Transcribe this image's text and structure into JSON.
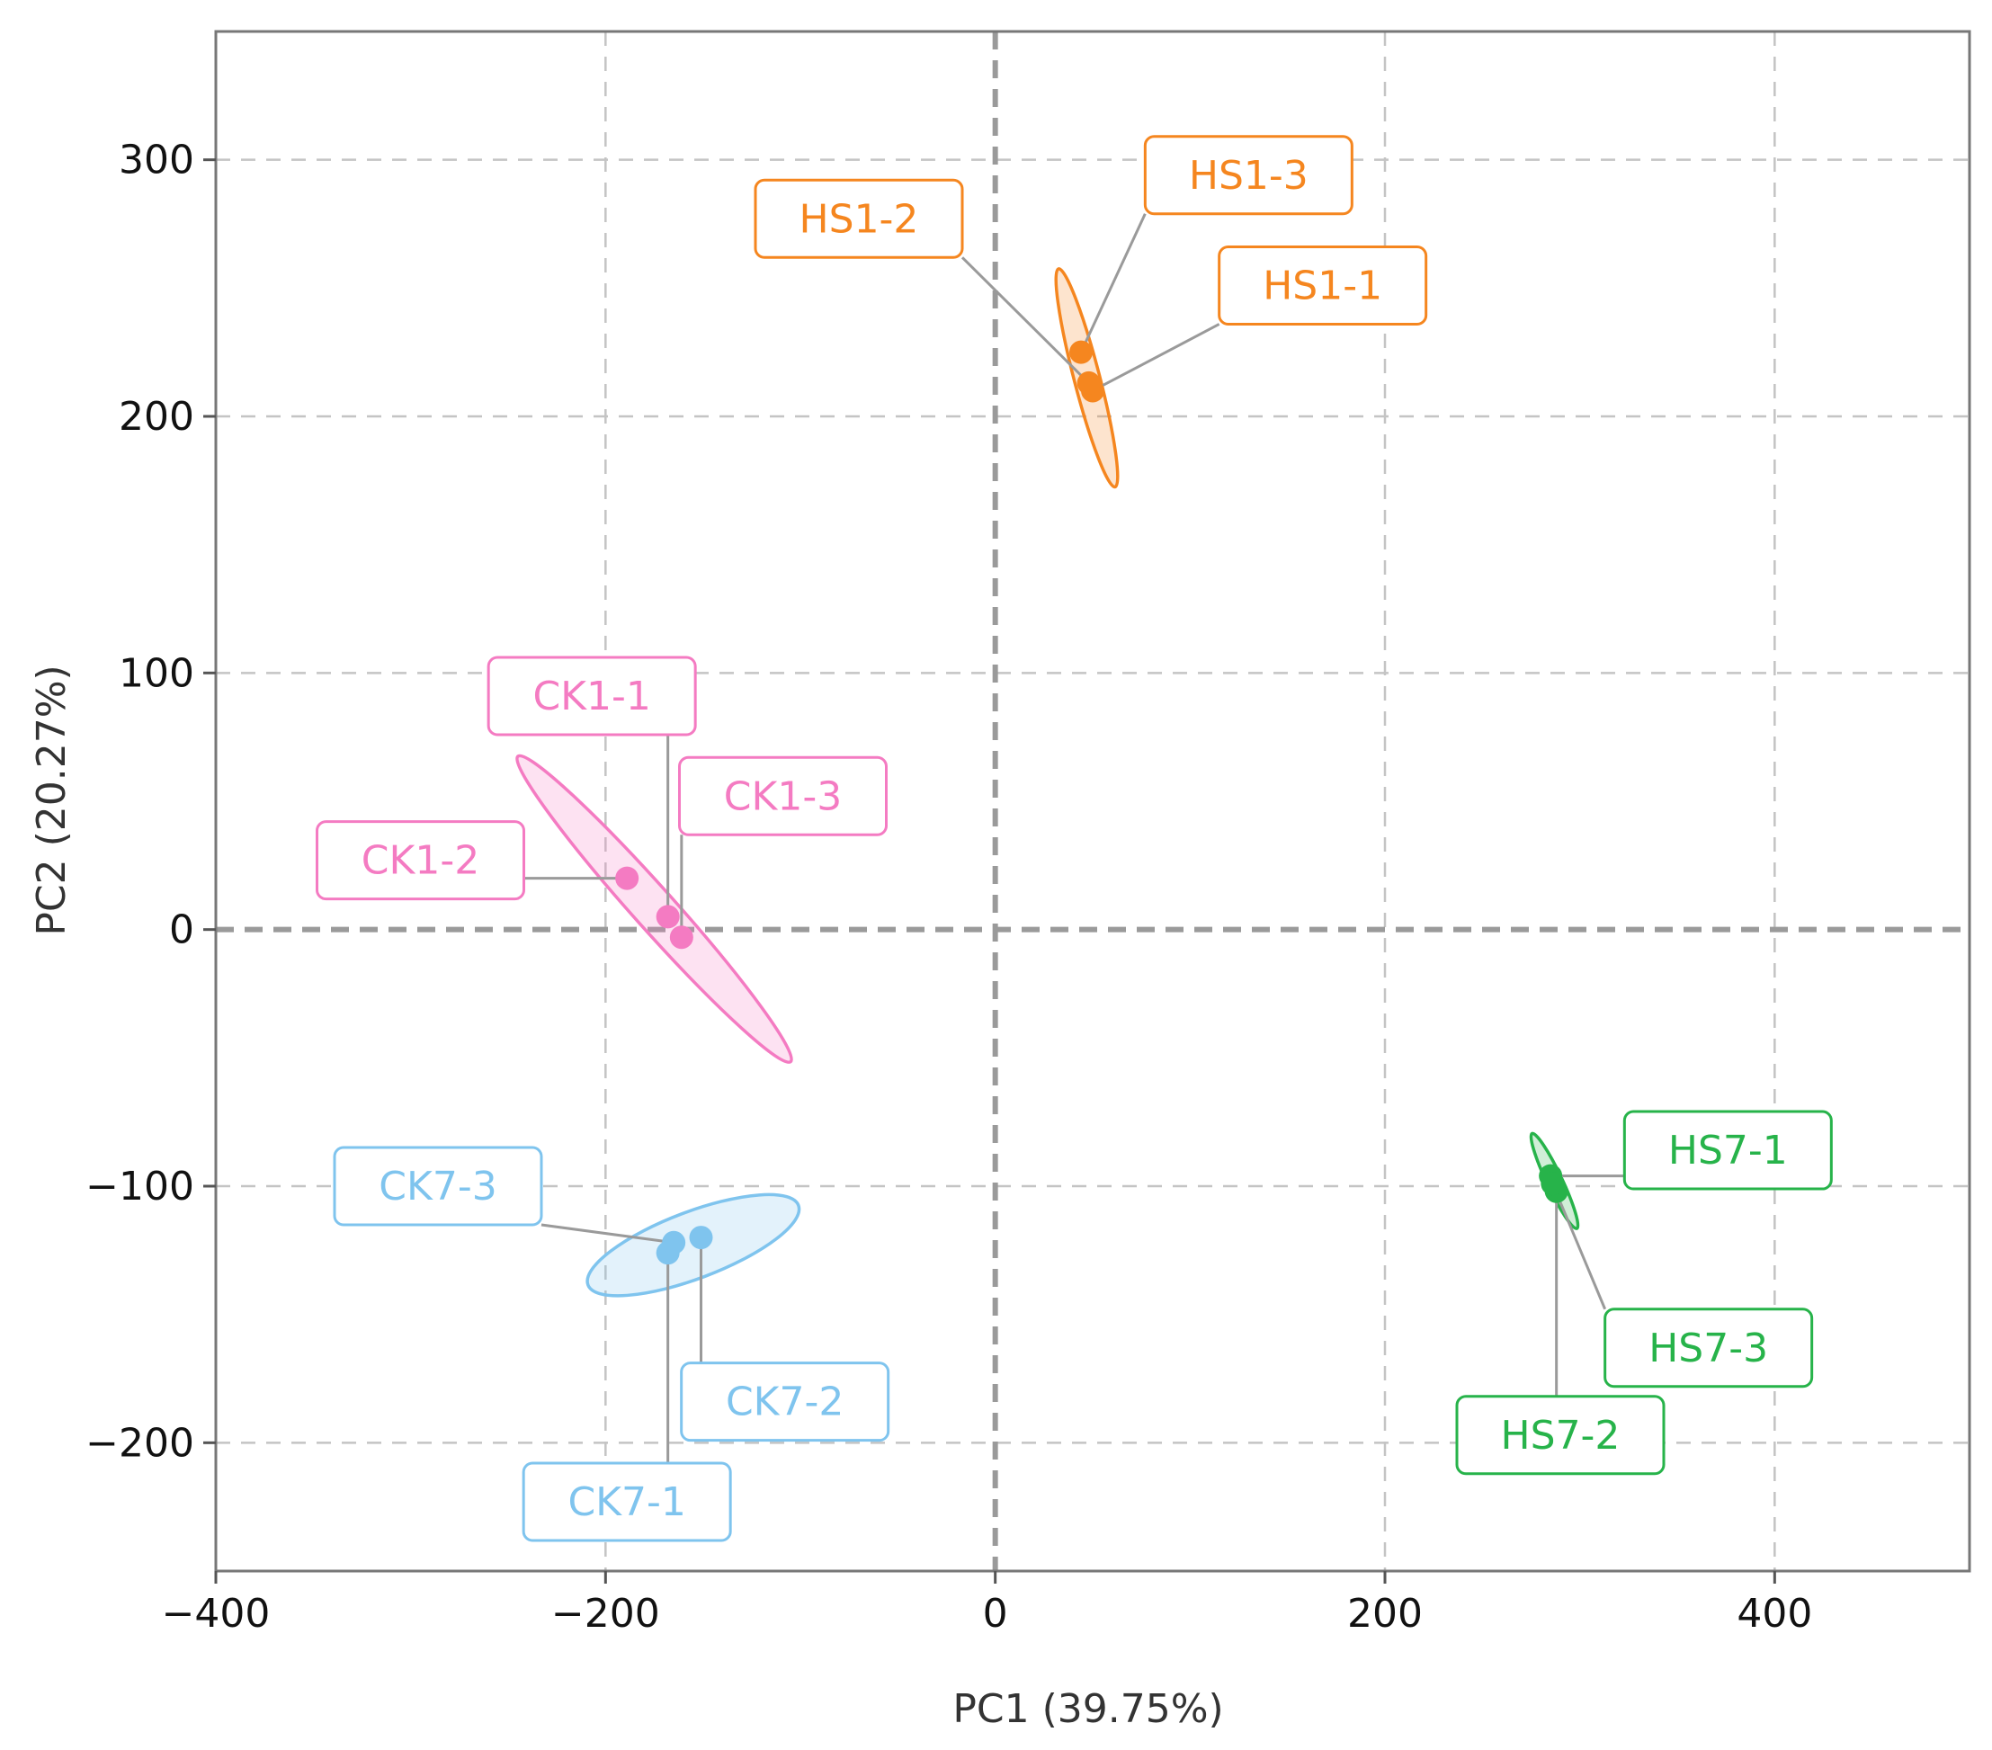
{
  "chart_data": {
    "type": "scatter",
    "title": "",
    "xlabel": "PC1 (39.75%)",
    "ylabel": "PC2 (20.27%)",
    "xlim": [
      -400,
      500
    ],
    "ylim": [
      -250,
      350
    ],
    "xticks": [
      -400,
      -200,
      0,
      200,
      400
    ],
    "yticks": [
      -200,
      -100,
      0,
      100,
      200,
      300
    ],
    "x_tick_labels": [
      "−400",
      "−200",
      "0",
      "200",
      "400"
    ],
    "y_tick_labels": [
      "−200",
      "−100",
      "0",
      "100",
      "200",
      "300"
    ],
    "grid": true,
    "zero_lines": true,
    "legend": "none",
    "groups": [
      {
        "color": "#F5861F",
        "ellipse": {
          "center": [
            47,
            215
          ],
          "x1": 33,
          "y1": 258,
          "x2": 62,
          "y2": 173,
          "minor_axis": 5
        },
        "points": [
          {
            "label": "HS1-1",
            "x": 50,
            "y": 210,
            "label_x": 168,
            "label_y": 251
          },
          {
            "label": "HS1-2",
            "x": 48,
            "y": 213,
            "label_x": -70,
            "label_y": 277
          },
          {
            "label": "HS1-3",
            "x": 44,
            "y": 225,
            "label_x": 130,
            "label_y": 294
          }
        ]
      },
      {
        "color": "#F47BC2",
        "ellipse": {
          "center": [
            -175,
            8
          ],
          "x1": -243,
          "y1": 66,
          "x2": -103,
          "y2": -53,
          "minor_axis": 8
        },
        "points": [
          {
            "label": "CK1-1",
            "x": -168,
            "y": 5,
            "label_x": -207,
            "label_y": 91
          },
          {
            "label": "CK1-2",
            "x": -189,
            "y": 20,
            "label_x": -295,
            "label_y": 27
          },
          {
            "label": "CK1-3",
            "x": -161,
            "y": -3,
            "label_x": -109,
            "label_y": 52
          }
        ]
      },
      {
        "color": "#7FC4EE",
        "ellipse": {
          "center": [
            -155,
            -123
          ],
          "x1": -208,
          "y1": -138,
          "x2": -100,
          "y2": -107,
          "minor_axis": 13
        },
        "points": [
          {
            "label": "CK7-1",
            "x": -168,
            "y": -126,
            "label_x": -189,
            "label_y": -223
          },
          {
            "label": "CK7-2",
            "x": -151,
            "y": -120,
            "label_x": -108,
            "label_y": -184
          },
          {
            "label": "CK7-3",
            "x": -165,
            "y": -122,
            "label_x": -286,
            "label_y": -100
          }
        ]
      },
      {
        "color": "#27B34A",
        "ellipse": {
          "center": [
            287,
            -98
          ],
          "x1": 275,
          "y1": -80,
          "x2": 298,
          "y2": -117,
          "minor_axis": 3
        },
        "points": [
          {
            "label": "HS7-1",
            "x": 285,
            "y": -96,
            "label_x": 376,
            "label_y": -86
          },
          {
            "label": "HS7-2",
            "x": 288,
            "y": -102,
            "label_x": 290,
            "label_y": -197
          },
          {
            "label": "HS7-3",
            "x": 286,
            "y": -99,
            "label_x": 366,
            "label_y": -163
          }
        ]
      }
    ]
  }
}
